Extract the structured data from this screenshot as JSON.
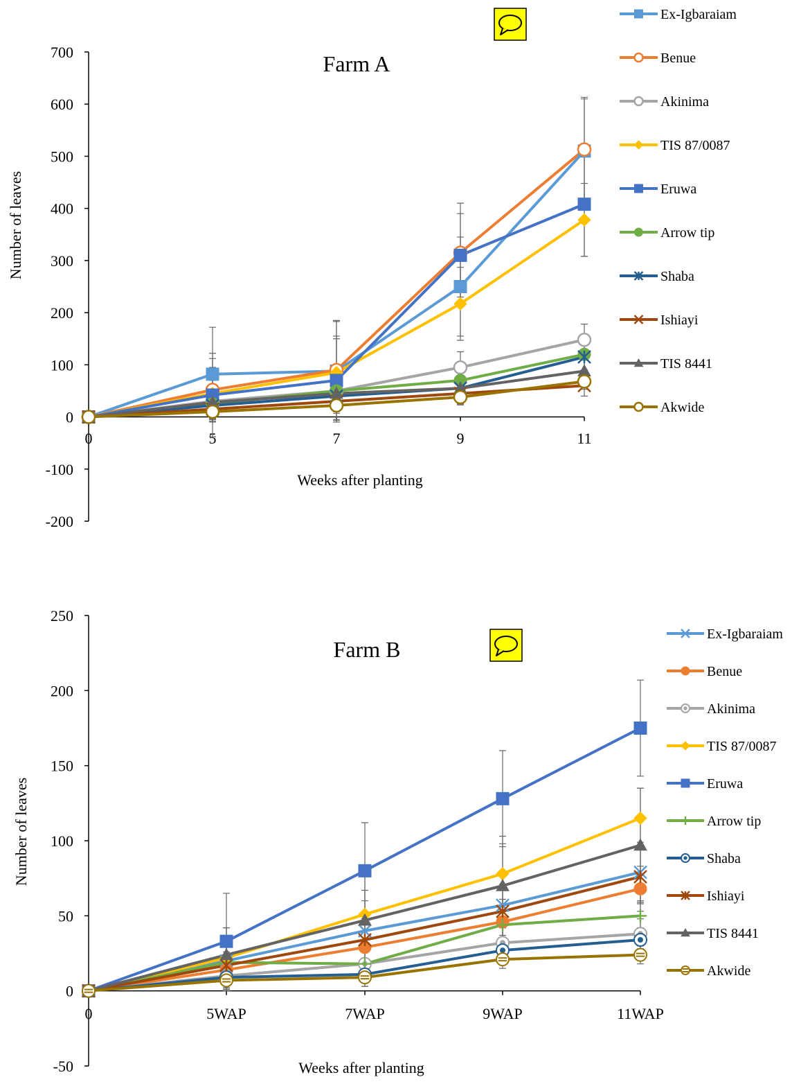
{
  "chart_data": [
    {
      "type": "line",
      "title": "Farm A",
      "xlabel": "Weeks after planting",
      "ylabel": "Number of leaves",
      "categories": [
        "0",
        "5",
        "7",
        "9",
        "11"
      ],
      "ylim": [
        -200,
        700
      ],
      "yticks": [
        700,
        600,
        500,
        400,
        300,
        200,
        100,
        0,
        -100,
        -200
      ],
      "grid": false,
      "legend_position": "right",
      "series": [
        {
          "name": "Ex-Igbaraiam",
          "color": "#5B9BD5",
          "marker": "square",
          "values": [
            0,
            82,
            88,
            250,
            510
          ],
          "error": [
            0,
            90,
            95,
            95,
            100
          ]
        },
        {
          "name": "Benue",
          "color": "#ED7D31",
          "marker": "circle-open",
          "values": [
            0,
            52,
            90,
            315,
            513
          ],
          "error": [
            0,
            60,
            95,
            95,
            100
          ]
        },
        {
          "name": "Akinima",
          "color": "#A5A5A5",
          "marker": "circle-open",
          "values": [
            0,
            30,
            50,
            95,
            148
          ],
          "error": [
            0,
            40,
            40,
            30,
            30
          ]
        },
        {
          "name": "TIS 87/0087",
          "color": "#FFC000",
          "marker": "diamond",
          "values": [
            0,
            45,
            85,
            217,
            378
          ],
          "error": [
            0,
            50,
            70,
            70,
            70
          ]
        },
        {
          "name": "Eruwa",
          "color": "#4472C4",
          "marker": "square",
          "values": [
            0,
            42,
            70,
            310,
            408
          ],
          "error": [
            0,
            80,
            80,
            80,
            100
          ]
        },
        {
          "name": "Arrow tip",
          "color": "#70AD47",
          "marker": "circle",
          "values": [
            0,
            25,
            50,
            70,
            120
          ],
          "error": [
            0,
            30,
            30,
            30,
            30
          ]
        },
        {
          "name": "Shaba",
          "color": "#255E91",
          "marker": "star",
          "values": [
            0,
            22,
            40,
            55,
            115
          ],
          "error": [
            0,
            25,
            25,
            25,
            25
          ]
        },
        {
          "name": "Ishiayi",
          "color": "#9E480E",
          "marker": "x",
          "values": [
            0,
            15,
            30,
            45,
            60
          ],
          "error": [
            0,
            20,
            20,
            20,
            20
          ]
        },
        {
          "name": "TIS 8441",
          "color": "#636363",
          "marker": "triangle",
          "values": [
            0,
            28,
            45,
            55,
            88
          ],
          "error": [
            0,
            30,
            30,
            30,
            30
          ]
        },
        {
          "name": "Akwide",
          "color": "#997300",
          "marker": "circle-open",
          "values": [
            0,
            10,
            22,
            38,
            68
          ],
          "error": [
            0,
            15,
            15,
            15,
            15
          ]
        }
      ]
    },
    {
      "type": "line",
      "title": "Farm B",
      "xlabel": "Weeks after planting",
      "ylabel": "Number of leaves",
      "categories": [
        "0",
        "5WAP",
        "7WAP",
        "9WAP",
        "11WAP"
      ],
      "ylim": [
        -50,
        250
      ],
      "yticks": [
        250,
        200,
        150,
        100,
        50,
        0,
        -50
      ],
      "grid": false,
      "legend_position": "right",
      "series": [
        {
          "name": "Ex-Igbaraiam",
          "color": "#5B9BD5",
          "marker": "x",
          "values": [
            0,
            20,
            40,
            57,
            79
          ],
          "error": [
            0,
            15,
            20,
            20,
            20
          ]
        },
        {
          "name": "Benue",
          "color": "#ED7D31",
          "marker": "circle",
          "values": [
            0,
            14,
            29,
            46,
            68
          ],
          "error": [
            0,
            12,
            15,
            15,
            15
          ]
        },
        {
          "name": "Akinima",
          "color": "#A5A5A5",
          "marker": "circle-dotted",
          "values": [
            0,
            10,
            18,
            32,
            38
          ],
          "error": [
            0,
            10,
            10,
            10,
            10
          ]
        },
        {
          "name": "TIS 87/0087",
          "color": "#FFC000",
          "marker": "diamond",
          "values": [
            0,
            22,
            51,
            78,
            115
          ],
          "error": [
            0,
            20,
            25,
            25,
            20
          ]
        },
        {
          "name": "Eruwa",
          "color": "#4472C4",
          "marker": "square",
          "values": [
            0,
            33,
            80,
            128,
            175
          ],
          "error": [
            0,
            32,
            32,
            32,
            32
          ]
        },
        {
          "name": "Arrow tip",
          "color": "#70AD47",
          "marker": "plus",
          "values": [
            0,
            19,
            18,
            44,
            50
          ],
          "error": [
            0,
            10,
            10,
            10,
            10
          ]
        },
        {
          "name": "Shaba",
          "color": "#255E91",
          "marker": "circle-dotted",
          "values": [
            0,
            9,
            11,
            27,
            34
          ],
          "error": [
            0,
            8,
            8,
            8,
            8
          ]
        },
        {
          "name": "Ishiayi",
          "color": "#9E480E",
          "marker": "star",
          "values": [
            0,
            17,
            34,
            53,
            76
          ],
          "error": [
            0,
            15,
            18,
            18,
            18
          ]
        },
        {
          "name": "TIS 8441",
          "color": "#636363",
          "marker": "triangle",
          "values": [
            0,
            24,
            47,
            70,
            97
          ],
          "error": [
            0,
            18,
            20,
            28,
            38
          ]
        },
        {
          "name": "Akwide",
          "color": "#997300",
          "marker": "circle-striped",
          "values": [
            0,
            7,
            9,
            21,
            24
          ],
          "error": [
            0,
            6,
            6,
            6,
            6
          ]
        }
      ]
    }
  ],
  "comment_icon": "speech-bubble-icon"
}
